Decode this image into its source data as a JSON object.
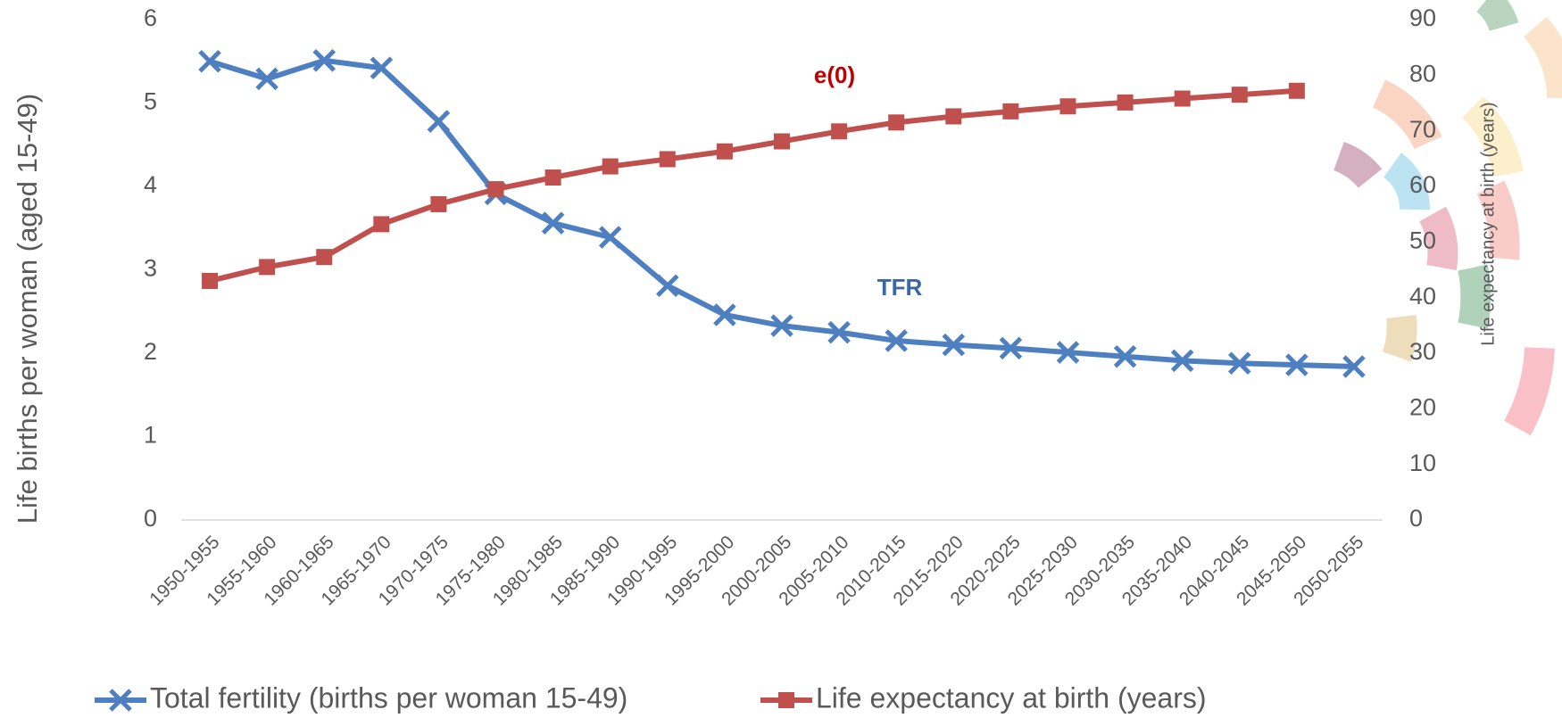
{
  "chart_data": {
    "type": "line",
    "categories": [
      "1950-1955",
      "1955-1960",
      "1960-1965",
      "1965-1970",
      "1970-1975",
      "1975-1980",
      "1980-1985",
      "1985-1990",
      "1990-1995",
      "1995-2000",
      "2000-2005",
      "2005-2010",
      "2010-2015",
      "2015-2020",
      "2020-2025",
      "2025-2030",
      "2030-2035",
      "2035-2040",
      "2040-2045",
      "2045-2050",
      "2050-2055"
    ],
    "series": [
      {
        "name": "Total fertility (births per woman 15-49)",
        "color": "#4e7fc0",
        "marker": "x",
        "values": [
          5.5,
          5.29,
          5.51,
          5.42,
          4.78,
          3.91,
          3.56,
          3.39,
          2.81,
          2.46,
          2.33,
          2.25,
          2.15,
          2.1,
          2.06,
          2.01,
          1.96,
          1.91,
          1.88,
          1.86,
          1.84
        ]
      },
      {
        "name": "Life expectancy at birth (years)",
        "color": "#c0504d",
        "marker": "square",
        "axis": "y2",
        "values": [
          43.0,
          45.5,
          47.3,
          53.2,
          56.8,
          59.5,
          61.6,
          63.6,
          64.9,
          66.3,
          68.1,
          69.9,
          71.5,
          72.6,
          73.5,
          74.4,
          75.1,
          75.8,
          76.5,
          77.2,
          null
        ]
      }
    ],
    "y_label": "Life births per woman (aged 15-49)",
    "y2_label": "Life expectancy at birth (years)",
    "ylim": [
      0,
      6
    ],
    "yticks": [
      0,
      1,
      2,
      3,
      4,
      5,
      6
    ],
    "y2lim": [
      0,
      90
    ],
    "y2ticks": [
      0,
      10,
      20,
      30,
      40,
      50,
      60,
      70,
      80,
      90
    ],
    "annotations": [
      "e(0)",
      "TFR"
    ],
    "legend": "bottom"
  }
}
